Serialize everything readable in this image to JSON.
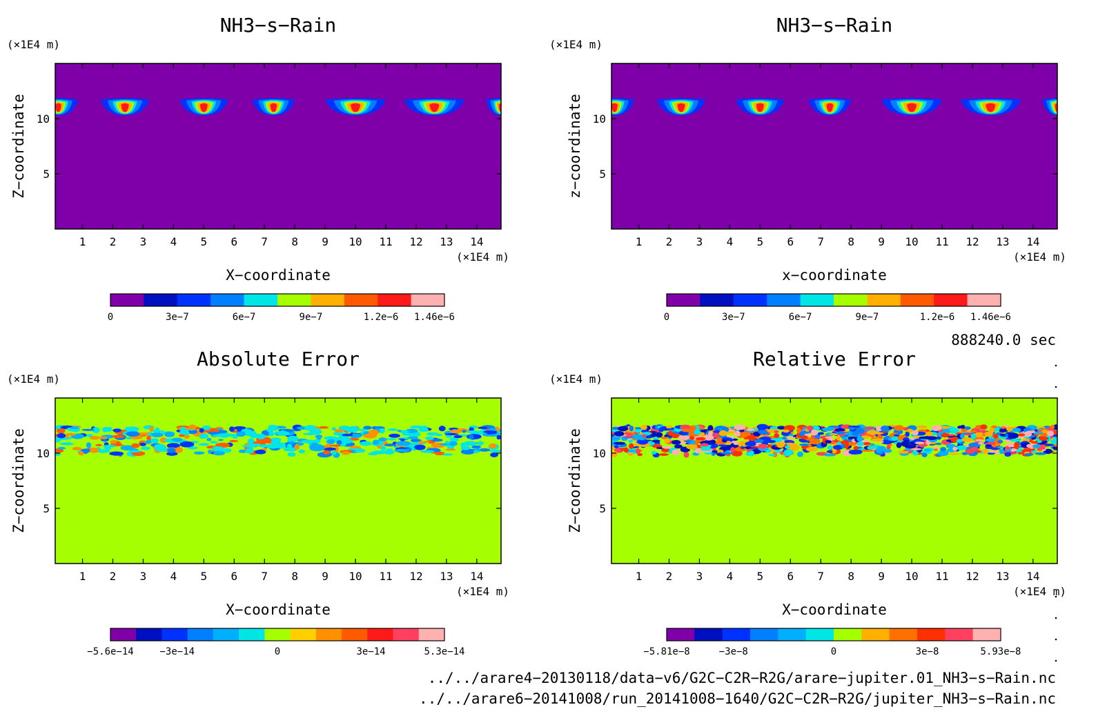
{
  "chart_data": [
    {
      "type": "heatmap",
      "title": "NH3−s−Rain",
      "xlabel": "X−coordinate",
      "ylabel": "Z−coordinate",
      "x_unit": "(×1E4 m)",
      "y_unit": "(×1E4 m)",
      "xlim": [
        0.1,
        14.8
      ],
      "ylim": [
        0,
        15
      ],
      "xticks": [
        "1",
        "2",
        "3",
        "4",
        "5",
        "6",
        "7",
        "8",
        "9",
        "10",
        "11",
        "12",
        "13",
        "14"
      ],
      "yticks": [
        "5",
        "10"
      ],
      "background_color": "#7f00a8",
      "field_pattern": "cells",
      "cells_x_center": [
        0.2,
        2.4,
        5.0,
        7.3,
        10.0,
        12.6,
        14.8
      ],
      "cell_layer_z": [
        10.3,
        11.8
      ],
      "colorbar": {
        "colors": [
          "#7f00a8",
          "#000fbf",
          "#0032ff",
          "#0080ff",
          "#00e5e5",
          "#a6ff00",
          "#ffb000",
          "#ff5a00",
          "#ff1a1a",
          "#ffb0b0"
        ],
        "tick_labels": [
          "0",
          "3e−7",
          "6e−7",
          "9e−7",
          "1.2e−6",
          "1.46e−6"
        ]
      }
    },
    {
      "type": "heatmap",
      "title": "NH3−s−Rain",
      "xlabel": "x−coordinate",
      "ylabel": "z−coordinate",
      "x_unit": "(×1E4 m)",
      "y_unit": "(×1E4 m)",
      "xlim": [
        0.1,
        14.8
      ],
      "ylim": [
        0,
        15
      ],
      "xticks": [
        "1",
        "2",
        "3",
        "4",
        "5",
        "6",
        "7",
        "8",
        "9",
        "10",
        "11",
        "12",
        "13",
        "14"
      ],
      "yticks": [
        "5",
        "10"
      ],
      "background_color": "#7f00a8",
      "field_pattern": "cells",
      "cells_x_center": [
        0.2,
        2.4,
        5.0,
        7.3,
        10.0,
        12.6,
        14.8
      ],
      "cell_layer_z": [
        10.3,
        11.8
      ],
      "colorbar": {
        "colors": [
          "#7f00a8",
          "#000fbf",
          "#0032ff",
          "#0080ff",
          "#00e5e5",
          "#a6ff00",
          "#ffb000",
          "#ff5a00",
          "#ff1a1a",
          "#ffb0b0"
        ],
        "tick_labels": [
          "0",
          "3e−7",
          "6e−7",
          "9e−7",
          "1.2e−6",
          "1.46e−6"
        ]
      }
    },
    {
      "type": "heatmap",
      "title": "Absolute Error",
      "xlabel": "X−coordinate",
      "ylabel": "Z−coordinate",
      "x_unit": "(×1E4 m)",
      "y_unit": "(×1E4 m)",
      "xlim": [
        0.1,
        14.8
      ],
      "ylim": [
        0,
        15
      ],
      "xticks": [
        "1",
        "2",
        "3",
        "4",
        "5",
        "6",
        "7",
        "8",
        "9",
        "10",
        "11",
        "12",
        "13",
        "14"
      ],
      "yticks": [
        "5",
        "10"
      ],
      "background_color": "#a6ff00",
      "field_pattern": "noise-sparse",
      "noise_layer_z": [
        9.8,
        12.4
      ],
      "colorbar": {
        "colors": [
          "#7f00a8",
          "#000fbf",
          "#0032ff",
          "#0080ff",
          "#00b0ff",
          "#00e5e5",
          "#a6ff00",
          "#ffd000",
          "#ff9000",
          "#ff5a00",
          "#ff1a1a",
          "#ff4060",
          "#ffb0b0"
        ],
        "tick_labels": [
          "−5.6e−14",
          "−3e−14",
          "0",
          "3e−14",
          "5.3e−14"
        ]
      }
    },
    {
      "type": "heatmap",
      "title": "Relative Error",
      "xlabel": "X−coordinate",
      "ylabel": "Z−coordinate",
      "x_unit": "(×1E4 m)",
      "y_unit": "(×1E4 m)",
      "xlim": [
        0.1,
        14.8
      ],
      "ylim": [
        0,
        15
      ],
      "xticks": [
        "1",
        "2",
        "3",
        "4",
        "5",
        "6",
        "7",
        "8",
        "9",
        "10",
        "11",
        "12",
        "13",
        "14"
      ],
      "yticks": [
        "5",
        "10"
      ],
      "background_color": "#a6ff00",
      "field_pattern": "noise-dense",
      "noise_layer_z": [
        9.8,
        12.4
      ],
      "colorbar": {
        "colors": [
          "#7f00a8",
          "#000fbf",
          "#0032ff",
          "#0080ff",
          "#00b0ff",
          "#00e5e5",
          "#a6ff00",
          "#ffb000",
          "#ff7000",
          "#ff3000",
          "#ff4060",
          "#ffb0b0"
        ],
        "tick_labels": [
          "−5.81e−8",
          "−3e−8",
          "0",
          "3e−8",
          "5.93e−8"
        ]
      }
    }
  ],
  "time_label": "888240.0 sec",
  "files": [
    "../../arare4−20130118/data−v6/G2C−C2R−R2G/arare−jupiter.01_NH3−s−Rain.nc",
    "../../arare6−20141008/run_20141008−1640/G2C−C2R−R2G/jupiter_NH3−s−Rain.nc"
  ]
}
